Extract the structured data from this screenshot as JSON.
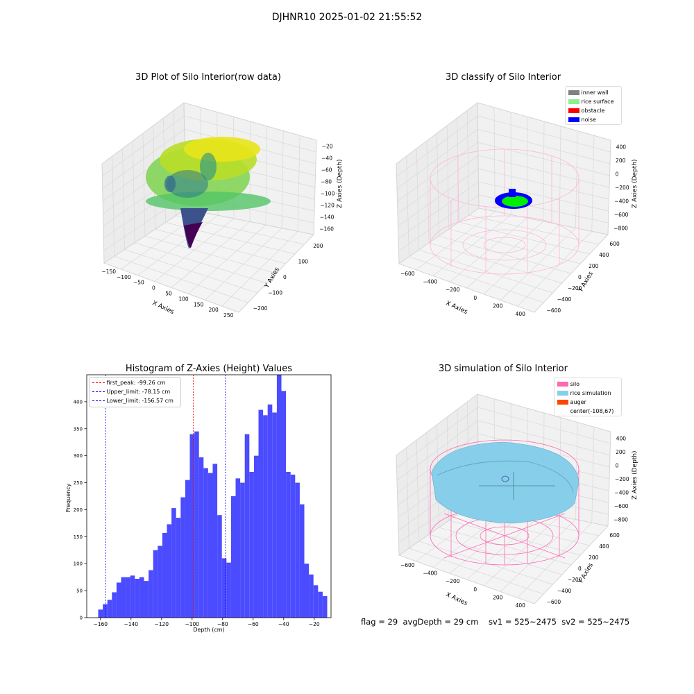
{
  "figure": {
    "suptitle": "DJHNR10 2025-01-02 21:55:52",
    "status_line": "flag = 29  avgDepth = 29 cm    sv1 = 525~2475  sv2 = 525~2475",
    "colors": {
      "hist_bar": "#4b4bff",
      "peak_line": "#ff0000",
      "limit_line": "#0000ff",
      "silo": "#ff69b4",
      "rice_sim": "#87ceeb",
      "auger": "#ff4500",
      "inner_wall": "#808080",
      "rice_surface": "#90ee90",
      "obstacle": "#ff0000",
      "noise": "#0000ff"
    }
  },
  "chart_data": [
    {
      "type": "scatter",
      "subtype": "3d",
      "title": "3D Plot of Silo Interior(row data)",
      "xlabel": "X Axies",
      "ylabel": "Y Axies",
      "zlabel": "Z Axies (Depth)",
      "x_ticks": [
        "−150",
        "−100",
        "−50",
        "0",
        "50",
        "100",
        "150",
        "200",
        "250"
      ],
      "y_ticks": [
        "200",
        "100",
        "0",
        "−100",
        "−200"
      ],
      "z_ticks": [
        "−20",
        "−40",
        "−60",
        "−80",
        "−100",
        "−120",
        "−140",
        "−160"
      ],
      "colormap": "viridis"
    },
    {
      "type": "scatter",
      "subtype": "3d",
      "title": "3D classify of Silo Interior",
      "xlabel": "X Axies",
      "ylabel": "Y Axies",
      "zlabel": "Z Axies (Depth)",
      "x_ticks": [
        "−600",
        "−400",
        "−200",
        "0",
        "200",
        "400"
      ],
      "y_ticks": [
        "600",
        "400",
        "200",
        "0",
        "−200",
        "−400",
        "−600"
      ],
      "z_ticks": [
        "400",
        "200",
        "0",
        "−200",
        "−400",
        "−600",
        "−800"
      ],
      "legend": [
        "inner wall",
        "rice surface",
        "obstacle",
        "noise"
      ]
    },
    {
      "type": "bar",
      "subtype": "histogram",
      "title": "Histogram of Z-Axies (Height) Values",
      "xlabel": "Depth (cm)",
      "ylabel": "Frequency",
      "xlim": [
        -169,
        -9
      ],
      "ylim": [
        0,
        450
      ],
      "x_ticks": [
        -160,
        -140,
        -120,
        -100,
        -80,
        -60,
        -40,
        -20
      ],
      "x_tick_labels": [
        "−160",
        "−140",
        "−120",
        "−100",
        "−80",
        "−60",
        "−40",
        "−20"
      ],
      "y_ticks": [
        0,
        50,
        100,
        150,
        200,
        250,
        300,
        350,
        400
      ],
      "y_tick_labels": [
        "0",
        "50",
        "100",
        "150",
        "200",
        "250",
        "300",
        "350",
        "400"
      ],
      "bin_start": -161.5,
      "bin_width": 3,
      "values": [
        15,
        25,
        33,
        47,
        65,
        75,
        75,
        78,
        72,
        75,
        68,
        88,
        125,
        133,
        157,
        173,
        203,
        185,
        223,
        255,
        340,
        345,
        297,
        277,
        268,
        285,
        190,
        110,
        102,
        225,
        258,
        250,
        340,
        270,
        300,
        385,
        375,
        395,
        380,
        455,
        420,
        270,
        265,
        250,
        210,
        100,
        80,
        60,
        48,
        40
      ],
      "vlines": [
        {
          "label": "first_peak: -99.26 cm",
          "x": -99.26,
          "color": "#ff0000"
        },
        {
          "label": "Upper_limit: -78.15 cm",
          "x": -78.15,
          "color": "#0000ff"
        },
        {
          "label": "Lower_limit: -156.57 cm",
          "x": -156.57,
          "color": "#0000ff"
        }
      ],
      "legend_position": "top-left"
    },
    {
      "type": "scatter",
      "subtype": "3d-surface",
      "title": "3D simulation of Silo Interior",
      "xlabel": "X Axies",
      "ylabel": "Y Axies",
      "zlabel": "Z Axies (Depth)",
      "x_ticks": [
        "−600",
        "−400",
        "−200",
        "0",
        "200",
        "400"
      ],
      "y_ticks": [
        "600",
        "400",
        "200",
        "0",
        "−200",
        "−400",
        "−600"
      ],
      "z_ticks": [
        "400",
        "200",
        "0",
        "−200",
        "−400",
        "−600",
        "−800"
      ],
      "legend": [
        "silo",
        "rice simulation",
        "auger",
        "center(-108,67)"
      ]
    }
  ]
}
